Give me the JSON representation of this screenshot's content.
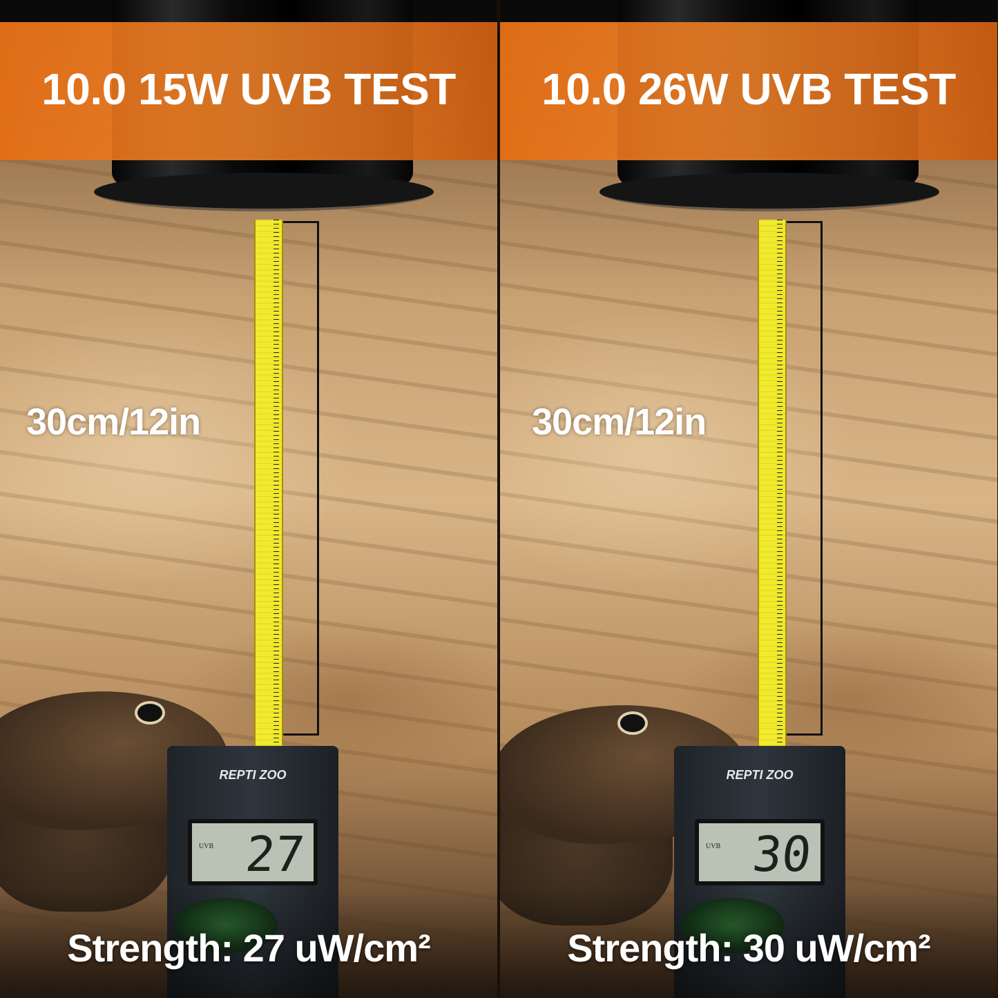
{
  "panels": [
    {
      "title": "10.0 15W UVB TEST",
      "distance": "30cm/12in",
      "meter_brand": "REPTI ZOO",
      "meter_label": "UVB",
      "reading": "27",
      "strength": "Strength: 27 uW/cm²"
    },
    {
      "title": "10.0 26W UVB TEST",
      "distance": "30cm/12in",
      "meter_brand": "REPTI ZOO",
      "meter_label": "UVB",
      "reading": "30",
      "strength": "Strength: 30 uW/cm²"
    }
  ],
  "colors": {
    "band": "#e8741e",
    "text": "#ffffff",
    "tape": "#f2ea30"
  }
}
